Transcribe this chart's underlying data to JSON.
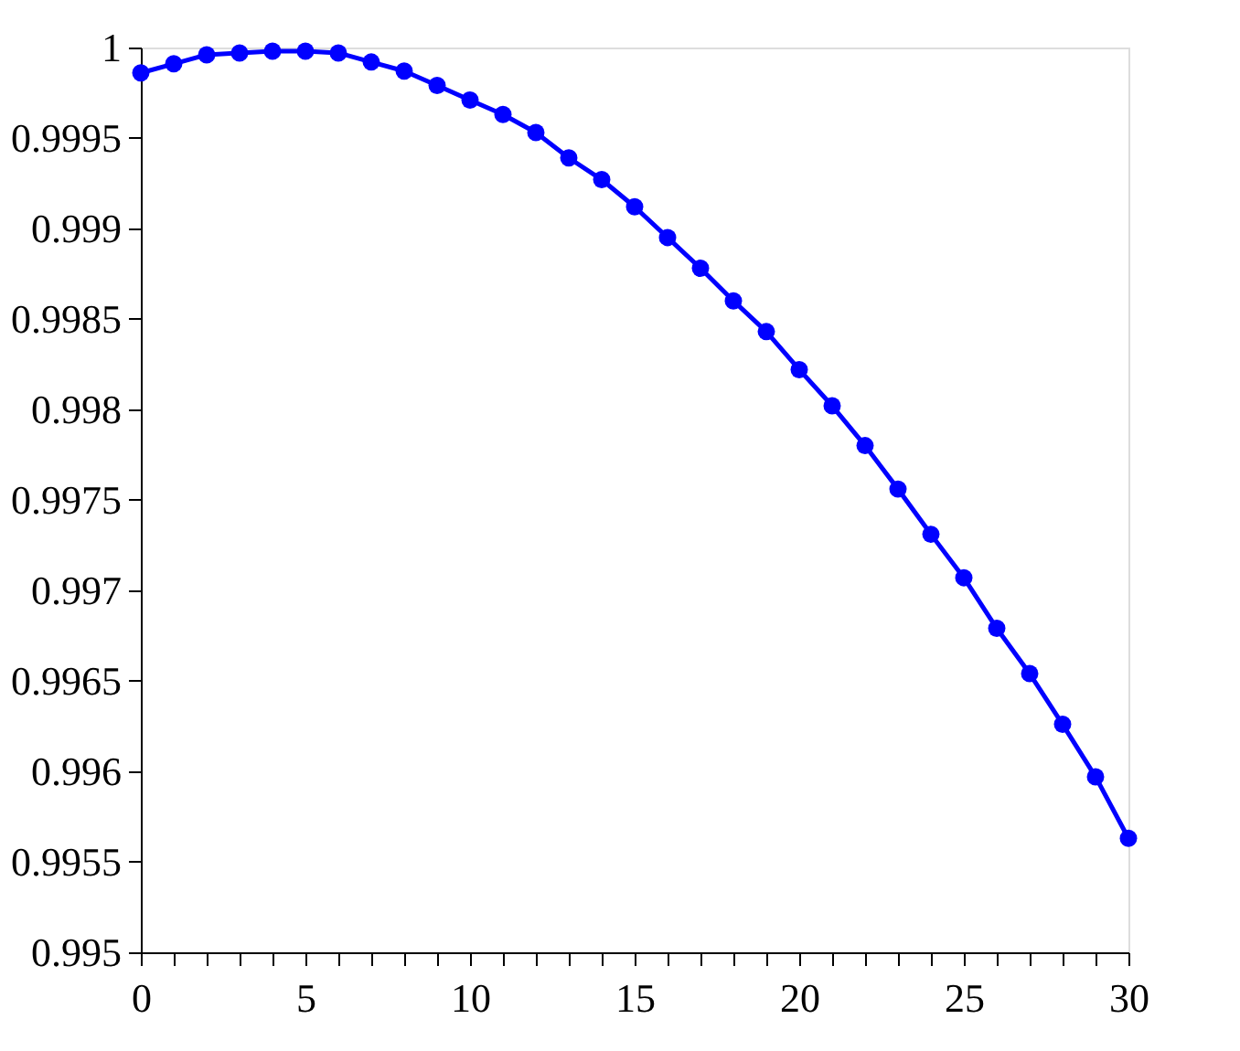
{
  "chart_data": {
    "type": "line",
    "x": [
      0,
      1,
      2,
      3,
      4,
      5,
      6,
      7,
      8,
      9,
      10,
      11,
      12,
      13,
      14,
      15,
      16,
      17,
      18,
      19,
      20,
      21,
      22,
      23,
      24,
      25,
      26,
      27,
      28,
      29,
      30
    ],
    "series": [
      {
        "color": "#0000ff",
        "values": [
          0.99986,
          0.99991,
          0.99996,
          0.99997,
          0.99998,
          0.99998,
          0.99997,
          0.99992,
          0.99987,
          0.99979,
          0.99971,
          0.99963,
          0.99953,
          0.99939,
          0.99927,
          0.99912,
          0.99895,
          0.99878,
          0.9986,
          0.99843,
          0.99822,
          0.99802,
          0.9978,
          0.99756,
          0.99731,
          0.99707,
          0.99679,
          0.99654,
          0.99626,
          0.99597,
          0.99563
        ]
      }
    ],
    "xlim": [
      0,
      30
    ],
    "xticks": [
      0,
      {
        "value": 1,
        "label": null
      },
      {
        "value": 2,
        "label": null
      },
      {
        "value": 3,
        "label": null
      },
      {
        "value": 4,
        "label": null
      },
      5,
      {
        "value": 6,
        "label": null
      },
      {
        "value": 7,
        "label": null
      },
      {
        "value": 8,
        "label": null
      },
      {
        "value": 9,
        "label": null
      },
      10,
      {
        "value": 11,
        "label": null
      },
      {
        "value": 12,
        "label": null
      },
      {
        "value": 13,
        "label": null
      },
      {
        "value": 14,
        "label": null
      },
      15,
      {
        "value": 16,
        "label": null
      },
      {
        "value": 17,
        "label": null
      },
      {
        "value": 18,
        "label": null
      },
      {
        "value": 19,
        "label": null
      },
      20,
      {
        "value": 21,
        "label": null
      },
      {
        "value": 22,
        "label": null
      },
      {
        "value": 23,
        "label": null
      },
      {
        "value": 24,
        "label": null
      },
      25,
      {
        "value": 26,
        "label": null
      },
      {
        "value": 27,
        "label": null
      },
      {
        "value": 28,
        "label": null
      },
      {
        "value": 29,
        "label": null
      },
      30
    ],
    "ylim": [
      0.995,
      1
    ],
    "yticks": [
      0.995,
      0.9955,
      0.996,
      0.9965,
      0.997,
      0.9975,
      0.998,
      0.9985,
      0.999,
      0.9995,
      1
    ],
    "grid": false,
    "legend": false,
    "marker": "circle",
    "line_style": "solid"
  }
}
